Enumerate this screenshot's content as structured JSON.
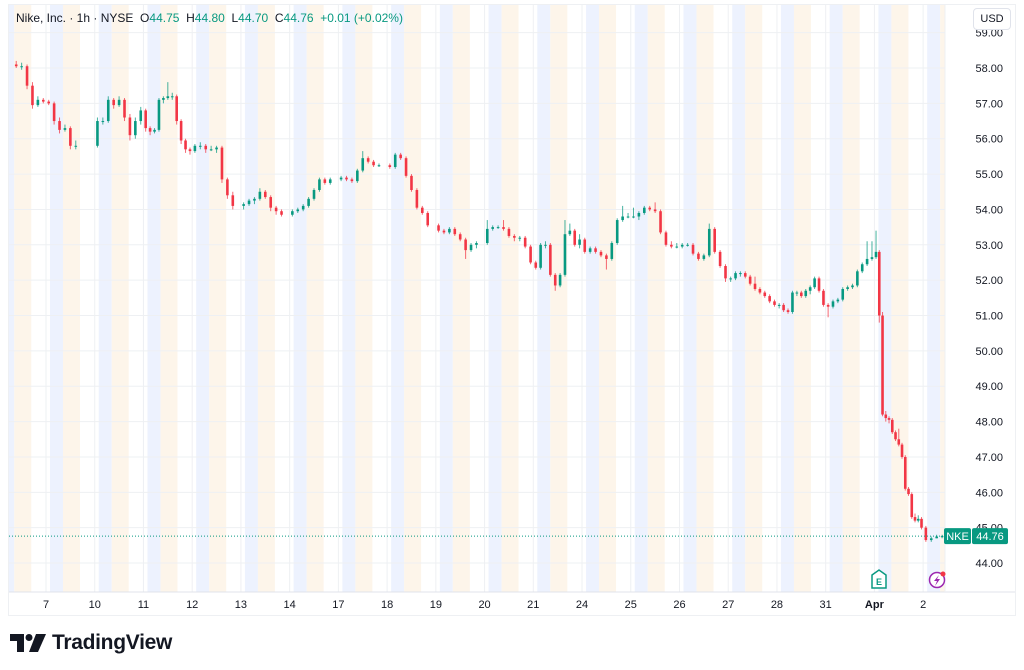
{
  "legend": {
    "title": "Nike, Inc. · 1h · NYSE",
    "open_label": "O",
    "open": "44.75",
    "high_label": "H",
    "high": "44.80",
    "low_label": "L",
    "low": "44.70",
    "close_label": "C",
    "close": "44.76",
    "change": "+0.01 (+0.02%)"
  },
  "currency_button": "USD",
  "brand": "TradingView",
  "colors": {
    "up": "#089981",
    "down": "#F23645",
    "premarket": "#edf2fe",
    "postmarket": "#fdf5ea",
    "events": "#9c27b0"
  },
  "events": {
    "earnings_icon": "E",
    "lightning_icon": "flash-event"
  },
  "chart_data": {
    "type": "candlestick",
    "symbol": "NKE",
    "interval": "1h",
    "last_price": 44.76,
    "last_price_label": "44.76",
    "ylim": [
      43.2,
      59.2
    ],
    "y_ticks": [
      "44.00",
      "45.00",
      "46.00",
      "47.00",
      "48.00",
      "49.00",
      "50.00",
      "51.00",
      "52.00",
      "53.00",
      "54.00",
      "55.00",
      "56.00",
      "57.00",
      "58.00",
      "59.00"
    ],
    "grid": true,
    "days": [
      {
        "label": "",
        "candles": [
          [
            58.1,
            58.2,
            58.0,
            58.05
          ],
          [
            58.05,
            58.15,
            57.95,
            58.05
          ],
          [
            58.05,
            58.1,
            57.4,
            57.5
          ],
          [
            57.5,
            57.6,
            56.85,
            56.95
          ],
          [
            56.95,
            57.2,
            56.9,
            57.1
          ],
          [
            57.1,
            57.15,
            57.0,
            57.05
          ]
        ]
      },
      {
        "label": "7",
        "candles": [
          [
            57.05,
            57.1,
            56.95,
            57.0
          ],
          [
            57.0,
            57.05,
            56.4,
            56.5
          ],
          [
            56.5,
            56.6,
            56.15,
            56.25
          ],
          [
            56.25,
            56.4,
            56.2,
            56.3
          ],
          [
            56.3,
            56.35,
            55.7,
            55.8
          ],
          [
            55.8,
            55.95,
            55.7,
            55.8
          ]
        ]
      },
      {
        "label": "10",
        "candles": [
          [
            55.8,
            56.6,
            55.75,
            56.5
          ],
          [
            56.5,
            56.6,
            56.4,
            56.5
          ],
          [
            56.5,
            57.2,
            56.45,
            57.1
          ],
          [
            57.1,
            57.15,
            56.85,
            56.95
          ],
          [
            56.95,
            57.2,
            56.9,
            57.1
          ],
          [
            57.1,
            57.15,
            56.5,
            56.6
          ],
          [
            56.6,
            56.7,
            55.95,
            56.1
          ],
          [
            56.1,
            56.6,
            56.0,
            56.5
          ],
          [
            56.5,
            56.9,
            56.4,
            56.8
          ]
        ]
      },
      {
        "label": "11",
        "candles": [
          [
            56.8,
            56.85,
            56.2,
            56.3
          ],
          [
            56.3,
            56.35,
            56.1,
            56.2
          ],
          [
            56.2,
            56.3,
            56.15,
            56.25
          ],
          [
            56.25,
            57.15,
            56.2,
            57.1
          ],
          [
            57.1,
            57.2,
            57.0,
            57.15
          ],
          [
            57.15,
            57.6,
            57.1,
            57.2
          ],
          [
            57.2,
            57.3,
            57.1,
            57.2
          ],
          [
            57.2,
            57.25,
            56.4,
            56.5
          ],
          [
            56.5,
            56.55,
            55.85,
            55.95
          ],
          [
            55.95,
            56.0,
            55.6,
            55.7
          ],
          [
            55.7,
            55.75,
            55.55,
            55.65
          ]
        ]
      },
      {
        "label": "12",
        "candles": [
          [
            55.65,
            55.85,
            55.6,
            55.8
          ],
          [
            55.8,
            55.9,
            55.7,
            55.8
          ],
          [
            55.8,
            55.85,
            55.6,
            55.7
          ],
          [
            55.7,
            55.8,
            55.65,
            55.7
          ],
          [
            55.7,
            55.8,
            55.6,
            55.75
          ],
          [
            55.75,
            55.8,
            54.75,
            54.85
          ],
          [
            54.85,
            54.9,
            54.3,
            54.4
          ],
          [
            54.4,
            54.5,
            54.0,
            54.1
          ]
        ]
      },
      {
        "label": "13",
        "candles": [
          [
            54.1,
            54.2,
            54.0,
            54.15
          ],
          [
            54.15,
            54.3,
            54.1,
            54.25
          ],
          [
            54.25,
            54.35,
            54.15,
            54.3
          ],
          [
            54.3,
            54.6,
            54.25,
            54.5
          ],
          [
            54.5,
            54.55,
            54.3,
            54.35
          ],
          [
            54.35,
            54.4,
            53.95,
            54.05
          ],
          [
            54.05,
            54.1,
            53.85,
            53.95
          ],
          [
            53.95,
            54.0,
            53.8,
            53.85
          ]
        ]
      },
      {
        "label": "14",
        "candles": [
          [
            53.85,
            54.0,
            53.8,
            53.95
          ],
          [
            53.95,
            54.05,
            53.9,
            54.0
          ],
          [
            54.0,
            54.15,
            53.95,
            54.1
          ],
          [
            54.1,
            54.35,
            54.05,
            54.3
          ],
          [
            54.3,
            54.6,
            54.25,
            54.55
          ],
          [
            54.55,
            54.9,
            54.5,
            54.85
          ],
          [
            54.85,
            54.9,
            54.7,
            54.75
          ],
          [
            54.75,
            54.9,
            54.7,
            54.85
          ]
        ]
      },
      {
        "label": "17",
        "candles": [
          [
            54.85,
            54.95,
            54.8,
            54.9
          ],
          [
            54.9,
            54.95,
            54.8,
            54.85
          ],
          [
            54.85,
            54.9,
            54.75,
            54.8
          ],
          [
            54.8,
            55.15,
            54.75,
            55.1
          ],
          [
            55.1,
            55.65,
            55.05,
            55.45
          ],
          [
            55.45,
            55.5,
            55.3,
            55.35
          ],
          [
            55.35,
            55.4,
            55.2,
            55.25
          ],
          [
            55.25,
            55.3,
            55.2,
            55.25
          ]
        ]
      },
      {
        "label": "18",
        "candles": [
          [
            55.25,
            55.3,
            55.15,
            55.2
          ],
          [
            55.2,
            55.6,
            55.15,
            55.55
          ],
          [
            55.55,
            55.6,
            55.4,
            55.45
          ],
          [
            55.45,
            55.5,
            54.9,
            54.95
          ],
          [
            54.95,
            55.0,
            54.5,
            54.55
          ],
          [
            54.55,
            54.6,
            54.0,
            54.05
          ],
          [
            54.05,
            54.1,
            53.85,
            53.9
          ],
          [
            53.9,
            53.95,
            53.5,
            53.55
          ]
        ]
      },
      {
        "label": "19",
        "candles": [
          [
            53.55,
            53.6,
            53.35,
            53.4
          ],
          [
            53.4,
            53.45,
            53.3,
            53.35
          ],
          [
            53.35,
            53.5,
            53.3,
            53.45
          ],
          [
            53.45,
            53.5,
            53.25,
            53.3
          ],
          [
            53.3,
            53.35,
            53.1,
            53.15
          ],
          [
            53.15,
            53.2,
            52.6,
            52.85
          ],
          [
            52.85,
            53.05,
            52.8,
            53.0
          ],
          [
            53.0,
            53.1,
            52.9,
            53.05
          ]
        ]
      },
      {
        "label": "20",
        "candles": [
          [
            53.05,
            53.7,
            53.0,
            53.45
          ],
          [
            53.45,
            53.55,
            53.4,
            53.5
          ],
          [
            53.5,
            53.55,
            53.45,
            53.5
          ],
          [
            53.5,
            53.7,
            53.4,
            53.45
          ],
          [
            53.45,
            53.5,
            53.2,
            53.25
          ],
          [
            53.25,
            53.3,
            53.1,
            53.2
          ],
          [
            53.2,
            53.25,
            53.1,
            53.2
          ],
          [
            53.2,
            53.25,
            52.9,
            52.95
          ],
          [
            52.95,
            53.0,
            52.45,
            52.5
          ]
        ]
      },
      {
        "label": "21",
        "candles": [
          [
            52.5,
            52.55,
            52.3,
            52.35
          ],
          [
            52.35,
            53.05,
            52.3,
            53.0
          ],
          [
            53.0,
            53.1,
            52.9,
            53.0
          ],
          [
            53.0,
            53.05,
            52.1,
            52.15
          ],
          [
            52.15,
            52.2,
            51.7,
            51.85
          ],
          [
            51.85,
            52.2,
            51.8,
            52.15
          ],
          [
            52.15,
            53.7,
            52.1,
            53.3
          ],
          [
            53.3,
            53.6,
            53.25,
            53.4
          ],
          [
            53.4,
            53.45,
            52.95,
            53.0
          ],
          [
            53.0,
            53.3,
            52.9,
            53.15
          ]
        ]
      },
      {
        "label": "24",
        "candles": [
          [
            53.15,
            53.2,
            52.75,
            52.8
          ],
          [
            52.8,
            52.95,
            52.75,
            52.9
          ],
          [
            52.9,
            52.95,
            52.75,
            52.8
          ],
          [
            52.8,
            52.85,
            52.65,
            52.7
          ],
          [
            52.7,
            52.75,
            52.3,
            52.6
          ],
          [
            52.6,
            53.1,
            52.55,
            53.05
          ],
          [
            53.05,
            53.75,
            53.0,
            53.7
          ],
          [
            53.7,
            54.1,
            53.65,
            53.8
          ],
          [
            53.8,
            53.9,
            53.75,
            53.8
          ]
        ]
      },
      {
        "label": "25",
        "candles": [
          [
            53.8,
            54.05,
            53.75,
            53.8
          ],
          [
            53.8,
            53.95,
            53.7,
            53.9
          ],
          [
            53.9,
            54.1,
            53.85,
            54.05
          ],
          [
            54.05,
            54.1,
            53.95,
            54.0
          ],
          [
            54.0,
            54.2,
            53.9,
            53.95
          ],
          [
            53.95,
            54.0,
            53.3,
            53.35
          ],
          [
            53.35,
            53.4,
            52.95,
            53.0
          ],
          [
            53.0,
            53.1,
            52.9,
            52.95
          ],
          [
            52.95,
            53.05,
            52.9,
            52.95
          ]
        ]
      },
      {
        "label": "26",
        "candles": [
          [
            52.95,
            53.05,
            52.9,
            53.0
          ],
          [
            53.0,
            53.05,
            52.95,
            53.0
          ],
          [
            53.0,
            53.05,
            52.7,
            52.75
          ],
          [
            52.75,
            52.8,
            52.55,
            52.6
          ],
          [
            52.6,
            52.75,
            52.55,
            52.7
          ],
          [
            52.7,
            53.6,
            52.65,
            53.45
          ],
          [
            53.45,
            53.5,
            52.75,
            52.8
          ],
          [
            52.8,
            52.85,
            52.35,
            52.4
          ],
          [
            52.4,
            52.45,
            51.95,
            52.05
          ]
        ]
      },
      {
        "label": "27",
        "candles": [
          [
            52.05,
            52.1,
            51.95,
            52.05
          ],
          [
            52.05,
            52.25,
            52.0,
            52.2
          ],
          [
            52.2,
            52.25,
            52.1,
            52.2
          ],
          [
            52.2,
            52.25,
            52.05,
            52.1
          ],
          [
            52.1,
            52.15,
            51.85,
            51.9
          ],
          [
            51.9,
            52.1,
            51.7,
            51.75
          ],
          [
            51.75,
            51.8,
            51.6,
            51.65
          ],
          [
            51.65,
            51.7,
            51.5,
            51.55
          ],
          [
            51.55,
            51.6,
            51.35,
            51.4
          ],
          [
            51.4,
            51.45,
            51.25,
            51.3
          ]
        ]
      },
      {
        "label": "28",
        "candles": [
          [
            51.3,
            51.35,
            51.2,
            51.3
          ],
          [
            51.3,
            51.35,
            51.1,
            51.15
          ],
          [
            51.15,
            51.2,
            51.05,
            51.1
          ],
          [
            51.1,
            51.7,
            51.05,
            51.65
          ],
          [
            51.65,
            51.7,
            51.55,
            51.65
          ],
          [
            51.65,
            51.7,
            51.5,
            51.55
          ],
          [
            51.55,
            51.75,
            51.5,
            51.7
          ],
          [
            51.7,
            51.85,
            51.6,
            51.8
          ],
          [
            51.8,
            52.1,
            51.75,
            52.05
          ],
          [
            52.05,
            52.1,
            51.65,
            51.7
          ],
          [
            51.7,
            51.75,
            51.25,
            51.3
          ]
        ]
      },
      {
        "label": "31",
        "candles": [
          [
            51.3,
            51.35,
            50.95,
            51.25
          ],
          [
            51.25,
            51.45,
            51.2,
            51.4
          ],
          [
            51.4,
            51.5,
            51.35,
            51.45
          ],
          [
            51.45,
            51.8,
            51.4,
            51.75
          ],
          [
            51.75,
            51.85,
            51.7,
            51.8
          ],
          [
            51.8,
            51.9,
            51.75,
            51.85
          ],
          [
            51.85,
            52.3,
            51.8,
            52.25
          ],
          [
            52.25,
            52.5,
            52.2,
            52.45
          ],
          [
            52.45,
            53.1,
            52.4,
            52.6
          ],
          [
            52.6,
            53.1,
            52.55,
            52.65
          ]
        ]
      },
      {
        "label": "Apr",
        "candles": [
          [
            52.65,
            53.4,
            52.6,
            52.8
          ],
          [
            52.8,
            52.85,
            50.8,
            51.0
          ],
          [
            51.0,
            51.1,
            48.15,
            48.2
          ],
          [
            48.2,
            48.3,
            48.0,
            48.1
          ],
          [
            48.1,
            48.15,
            47.95,
            48.05
          ],
          [
            48.05,
            48.1,
            47.65,
            47.7
          ],
          [
            47.7,
            47.75,
            47.45,
            47.5
          ],
          [
            47.5,
            47.8,
            47.3,
            47.35
          ],
          [
            47.35,
            47.4,
            46.95,
            47.0
          ],
          [
            47.0,
            47.05,
            46.05,
            46.1
          ],
          [
            46.1,
            46.15,
            45.9,
            45.95
          ],
          [
            45.95,
            46.0,
            45.25,
            45.3
          ],
          [
            45.3,
            45.4,
            45.15,
            45.2
          ],
          [
            45.2,
            45.35,
            45.15,
            45.25
          ],
          [
            45.25,
            45.3,
            44.95,
            45.0
          ]
        ]
      },
      {
        "label": "2",
        "candles": [
          [
            45.0,
            45.05,
            44.6,
            44.65
          ],
          [
            44.65,
            44.75,
            44.6,
            44.7
          ],
          [
            44.7,
            44.8,
            44.7,
            44.75
          ],
          [
            44.75,
            44.8,
            44.7,
            44.76
          ]
        ]
      }
    ]
  }
}
